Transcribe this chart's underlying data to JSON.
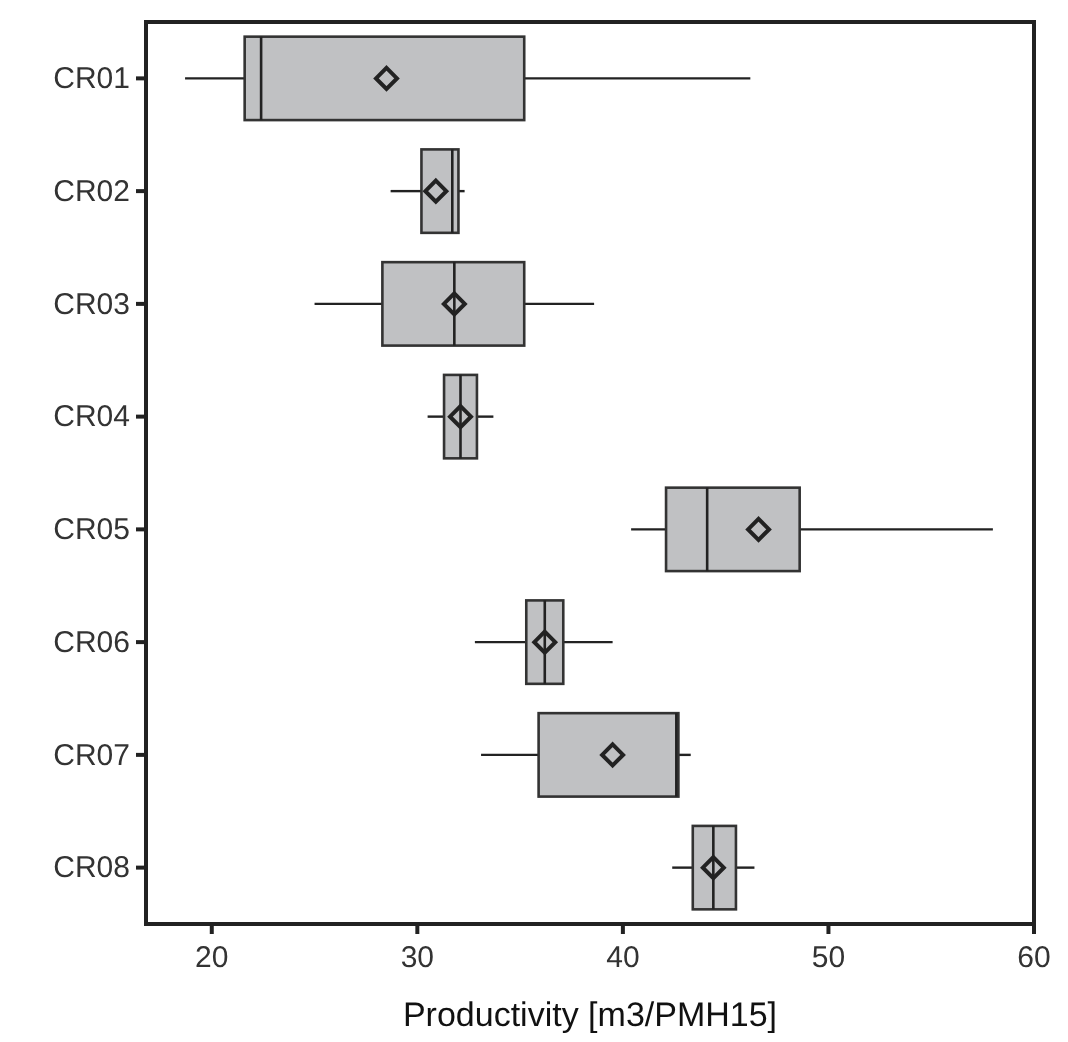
{
  "chart_data": {
    "type": "box",
    "orientation": "horizontal",
    "xlabel": "Productivity [m3/PMH15]",
    "categories": [
      "CR01",
      "CR02",
      "CR03",
      "CR04",
      "CR05",
      "CR06",
      "CR07",
      "CR08"
    ],
    "color": "#c0c1c3",
    "marker": "diamond",
    "grid": false,
    "xlim": [
      16.8,
      60
    ],
    "xticks": [
      20,
      30,
      40,
      50,
      60
    ],
    "boxes": [
      {
        "low": 18.7,
        "q1": 21.6,
        "median": 22.4,
        "q3": 35.2,
        "high": 46.2,
        "mean": 28.5
      },
      {
        "low": 28.7,
        "q1": 30.2,
        "median": 31.7,
        "q3": 32.0,
        "high": 32.3,
        "mean": 30.9
      },
      {
        "low": 25.0,
        "q1": 28.3,
        "median": 31.8,
        "q3": 35.2,
        "high": 38.6,
        "mean": 31.8
      },
      {
        "low": 30.5,
        "q1": 31.3,
        "median": 32.1,
        "q3": 32.9,
        "high": 33.7,
        "mean": 32.1
      },
      {
        "low": 40.4,
        "q1": 42.1,
        "median": 44.1,
        "q3": 48.6,
        "high": 58.0,
        "mean": 46.6
      },
      {
        "low": 32.8,
        "q1": 35.3,
        "median": 36.2,
        "q3": 37.1,
        "high": 39.5,
        "mean": 36.2
      },
      {
        "low": 33.1,
        "q1": 35.9,
        "median": 42.6,
        "q3": 42.7,
        "high": 43.3,
        "mean": 39.5
      },
      {
        "low": 42.4,
        "q1": 43.4,
        "median": 44.4,
        "q3": 45.5,
        "high": 46.4,
        "mean": 44.4
      }
    ]
  }
}
